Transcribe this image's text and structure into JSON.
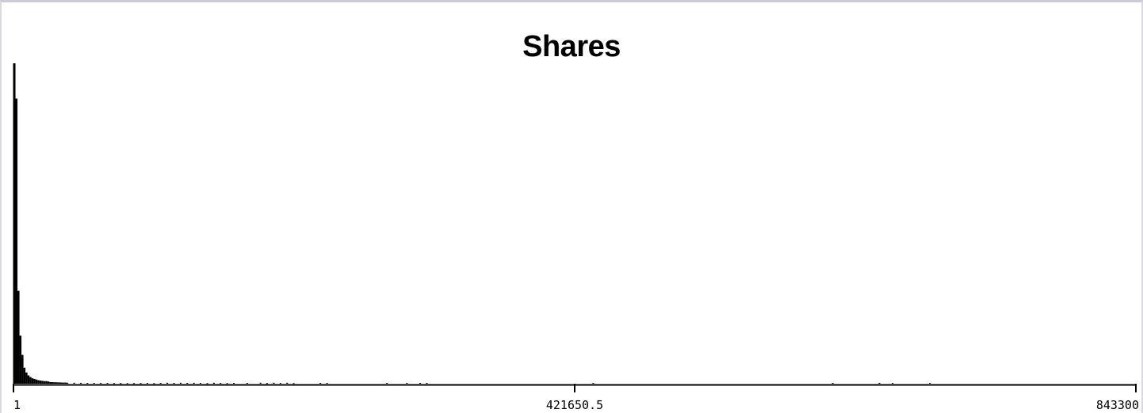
{
  "chart_data": {
    "type": "bar",
    "title": "Shares",
    "xlabel": "",
    "ylabel": "",
    "xlim": [
      1,
      843300
    ],
    "x_ticks": [
      "1",
      "421650.5",
      "843300"
    ],
    "grid": false,
    "legend": "none",
    "bar_color": "#000000",
    "bins": [
      {
        "x": 1,
        "y": 100
      },
      {
        "x": 1500,
        "y": 89
      },
      {
        "x": 3000,
        "y": 29
      },
      {
        "x": 4500,
        "y": 15
      },
      {
        "x": 6000,
        "y": 9
      },
      {
        "x": 7500,
        "y": 5
      },
      {
        "x": 9000,
        "y": 3.5
      },
      {
        "x": 10500,
        "y": 2.6
      },
      {
        "x": 12000,
        "y": 2.1
      },
      {
        "x": 13500,
        "y": 1.7
      },
      {
        "x": 15000,
        "y": 1.5
      },
      {
        "x": 16500,
        "y": 1.3
      },
      {
        "x": 18000,
        "y": 1.1
      },
      {
        "x": 19500,
        "y": 1.0
      },
      {
        "x": 21000,
        "y": 0.9
      },
      {
        "x": 22500,
        "y": 0.8
      },
      {
        "x": 24000,
        "y": 0.8
      },
      {
        "x": 25500,
        "y": 0.7
      },
      {
        "x": 27000,
        "y": 0.5
      },
      {
        "x": 30000,
        "y": 0.45
      },
      {
        "x": 33000,
        "y": 0.4
      },
      {
        "x": 36000,
        "y": 0.35
      },
      {
        "x": 40000,
        "y": 0.3
      },
      {
        "x": 45000,
        "y": 0.3
      },
      {
        "x": 50000,
        "y": 0.28
      },
      {
        "x": 55000,
        "y": 0.25
      },
      {
        "x": 60000,
        "y": 0.25
      },
      {
        "x": 65000,
        "y": 0.22
      },
      {
        "x": 70000,
        "y": 0.22
      },
      {
        "x": 75000,
        "y": 0.2
      },
      {
        "x": 80000,
        "y": 0.2
      },
      {
        "x": 85000,
        "y": 0.2
      },
      {
        "x": 90000,
        "y": 0.2
      },
      {
        "x": 95000,
        "y": 0.2
      },
      {
        "x": 100000,
        "y": 0.25
      },
      {
        "x": 105000,
        "y": 0.2
      },
      {
        "x": 110000,
        "y": 0.25
      },
      {
        "x": 115000,
        "y": 0.3
      },
      {
        "x": 120000,
        "y": 0.25
      },
      {
        "x": 125000,
        "y": 0.3
      },
      {
        "x": 130000,
        "y": 0.25
      },
      {
        "x": 135000,
        "y": 0.3
      },
      {
        "x": 140000,
        "y": 0.25
      },
      {
        "x": 145000,
        "y": 0.2
      },
      {
        "x": 150000,
        "y": 0.3
      },
      {
        "x": 155000,
        "y": 0.25
      },
      {
        "x": 160000,
        "y": 0.2
      },
      {
        "x": 165000,
        "y": 0.25
      },
      {
        "x": 175000,
        "y": 0.25
      },
      {
        "x": 185000,
        "y": 0.3
      },
      {
        "x": 190000,
        "y": 0.2
      },
      {
        "x": 195000,
        "y": 0.3
      },
      {
        "x": 200000,
        "y": 0.25
      },
      {
        "x": 205000,
        "y": 0.3
      },
      {
        "x": 210000,
        "y": 0.2
      },
      {
        "x": 230000,
        "y": 0.25
      },
      {
        "x": 235000,
        "y": 0.25
      },
      {
        "x": 280000,
        "y": 0.25
      },
      {
        "x": 295000,
        "y": 0.25
      },
      {
        "x": 305000,
        "y": 0.25
      },
      {
        "x": 310000,
        "y": 0.25
      },
      {
        "x": 435000,
        "y": 0.25
      },
      {
        "x": 615000,
        "y": 0.25
      },
      {
        "x": 650000,
        "y": 0.25
      },
      {
        "x": 660000,
        "y": 0.25
      },
      {
        "x": 688000,
        "y": 0.25
      }
    ]
  }
}
